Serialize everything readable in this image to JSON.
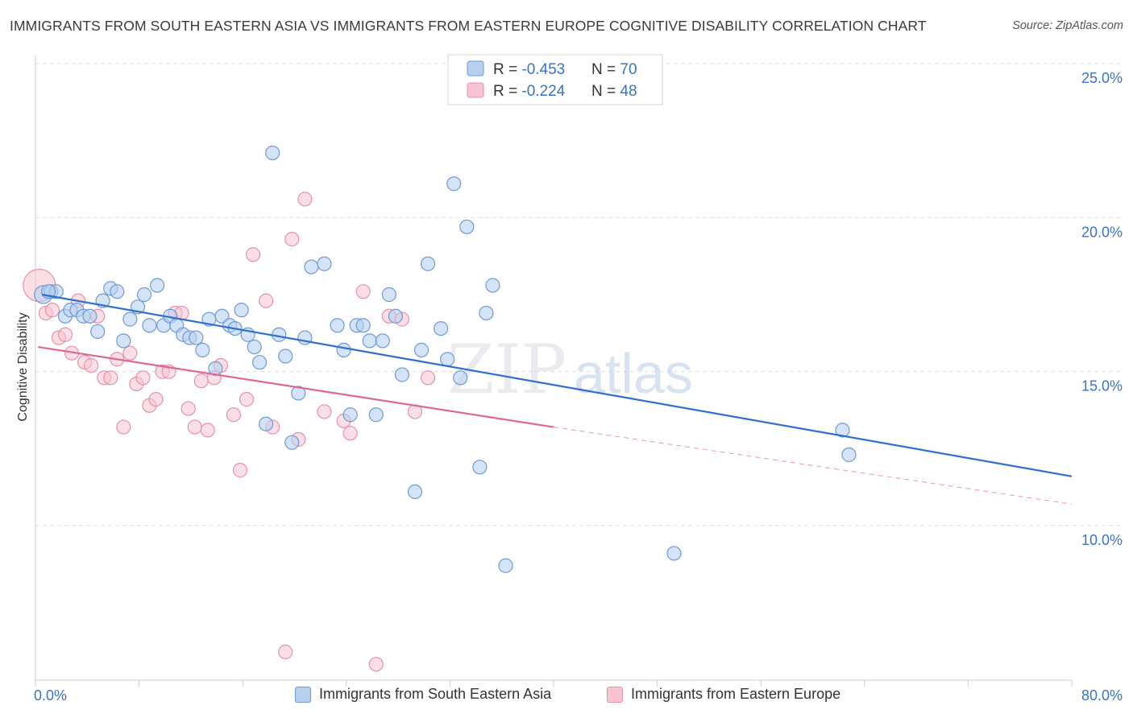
{
  "header": {
    "title": "IMMIGRANTS FROM SOUTH EASTERN ASIA VS IMMIGRANTS FROM EASTERN EUROPE COGNITIVE DISABILITY CORRELATION CHART",
    "source": "Source: ZipAtlas.com"
  },
  "watermark": {
    "zip": "ZIP",
    "atlas": "atlas"
  },
  "colors": {
    "blue_fill": "#b8d0f0",
    "blue_stroke": "#6f9ad6",
    "blue_line": "#2f6fcf",
    "pink_fill": "#f8c4d2",
    "pink_stroke": "#e890aa",
    "pink_line": "#e06890",
    "tick_label": "#3a73c6",
    "grid": "#dddddd"
  },
  "stats_legend": [
    {
      "r_label": "R = ",
      "r_value": "-0.453",
      "n_label": "N = ",
      "n_value": "70"
    },
    {
      "r_label": "R = ",
      "r_value": "-0.224",
      "n_label": "N = ",
      "n_value": "48"
    }
  ],
  "chart_data": {
    "type": "scatter",
    "ylabel": "Cognitive Disability",
    "xlim": [
      0,
      80
    ],
    "ylim": [
      5,
      26
    ],
    "x_tick_labels": [
      {
        "value": 0,
        "label": "0.0%"
      },
      {
        "value": 80,
        "label": "80.0%"
      }
    ],
    "y_tick_labels": [
      {
        "value": 10,
        "label": "10.0%"
      },
      {
        "value": 15,
        "label": "15.0%"
      },
      {
        "value": 20,
        "label": "20.0%"
      },
      {
        "value": 25,
        "label": "25.0%"
      }
    ],
    "grid": true,
    "legend_position": "bottom",
    "series": [
      {
        "name": "Immigrants from South Eastern Asia",
        "color": "#6f9ad6",
        "trend": {
          "x": [
            0.5,
            80
          ],
          "y": [
            17.5,
            11.6
          ]
        },
        "points": [
          [
            0.6,
            17.5
          ],
          [
            1.2,
            17.6
          ],
          [
            1.6,
            17.6
          ],
          [
            2.3,
            16.8
          ],
          [
            2.7,
            17.0
          ],
          [
            3.2,
            17.0
          ],
          [
            3.7,
            16.8
          ],
          [
            4.2,
            16.8
          ],
          [
            4.8,
            16.3
          ],
          [
            5.2,
            17.3
          ],
          [
            5.8,
            17.7
          ],
          [
            6.3,
            17.6
          ],
          [
            6.8,
            16.0
          ],
          [
            7.3,
            16.7
          ],
          [
            7.9,
            17.1
          ],
          [
            8.4,
            17.5
          ],
          [
            8.8,
            16.5
          ],
          [
            9.4,
            17.8
          ],
          [
            9.9,
            16.5
          ],
          [
            10.4,
            16.8
          ],
          [
            10.9,
            16.5
          ],
          [
            11.4,
            16.2
          ],
          [
            11.9,
            16.1
          ],
          [
            12.4,
            16.1
          ],
          [
            12.9,
            15.7
          ],
          [
            13.4,
            16.7
          ],
          [
            13.9,
            15.1
          ],
          [
            14.4,
            16.8
          ],
          [
            15.0,
            16.5
          ],
          [
            15.4,
            16.4
          ],
          [
            15.9,
            17.0
          ],
          [
            16.4,
            16.2
          ],
          [
            16.9,
            15.8
          ],
          [
            17.3,
            15.3
          ],
          [
            17.8,
            13.3
          ],
          [
            18.3,
            22.1
          ],
          [
            18.8,
            16.2
          ],
          [
            19.3,
            15.5
          ],
          [
            19.8,
            12.7
          ],
          [
            20.3,
            14.3
          ],
          [
            20.8,
            16.1
          ],
          [
            21.3,
            18.4
          ],
          [
            22.3,
            18.5
          ],
          [
            23.3,
            16.5
          ],
          [
            23.8,
            15.7
          ],
          [
            24.3,
            13.6
          ],
          [
            24.8,
            16.5
          ],
          [
            25.3,
            16.5
          ],
          [
            25.8,
            16.0
          ],
          [
            26.3,
            13.6
          ],
          [
            26.8,
            16.0
          ],
          [
            27.3,
            17.5
          ],
          [
            27.8,
            16.8
          ],
          [
            28.3,
            14.9
          ],
          [
            29.3,
            11.1
          ],
          [
            29.8,
            15.7
          ],
          [
            30.3,
            18.5
          ],
          [
            31.3,
            16.4
          ],
          [
            31.8,
            15.4
          ],
          [
            32.3,
            21.1
          ],
          [
            32.8,
            14.8
          ],
          [
            33.3,
            19.7
          ],
          [
            34.3,
            11.9
          ],
          [
            34.8,
            16.9
          ],
          [
            35.3,
            17.8
          ],
          [
            36.3,
            8.7
          ],
          [
            49.3,
            9.1
          ],
          [
            62.3,
            13.1
          ],
          [
            62.8,
            12.3
          ],
          [
            1.0,
            17.6
          ]
        ]
      },
      {
        "name": "Immigrants from Eastern Europe",
        "color": "#e890aa",
        "trend": {
          "x": [
            0.2,
            40
          ],
          "y": [
            15.8,
            13.2
          ]
        },
        "trend_extended": {
          "x": [
            40,
            80
          ],
          "y": [
            13.2,
            10.7
          ]
        },
        "points": [
          [
            0.3,
            17.8
          ],
          [
            0.8,
            16.9
          ],
          [
            1.3,
            17.0
          ],
          [
            1.8,
            16.1
          ],
          [
            2.3,
            16.2
          ],
          [
            2.8,
            15.6
          ],
          [
            3.3,
            17.3
          ],
          [
            3.8,
            15.3
          ],
          [
            4.3,
            15.2
          ],
          [
            4.8,
            16.8
          ],
          [
            5.3,
            14.8
          ],
          [
            5.8,
            14.8
          ],
          [
            6.3,
            15.4
          ],
          [
            6.8,
            13.2
          ],
          [
            7.3,
            15.6
          ],
          [
            7.8,
            14.6
          ],
          [
            8.3,
            14.8
          ],
          [
            8.8,
            13.9
          ],
          [
            9.3,
            14.1
          ],
          [
            9.8,
            15.0
          ],
          [
            10.3,
            15.0
          ],
          [
            10.8,
            16.9
          ],
          [
            11.3,
            16.9
          ],
          [
            11.8,
            13.8
          ],
          [
            12.3,
            13.2
          ],
          [
            12.8,
            14.7
          ],
          [
            13.3,
            13.1
          ],
          [
            13.8,
            14.8
          ],
          [
            14.3,
            15.2
          ],
          [
            15.3,
            13.6
          ],
          [
            15.8,
            11.8
          ],
          [
            16.3,
            14.1
          ],
          [
            16.8,
            18.8
          ],
          [
            17.8,
            17.3
          ],
          [
            18.3,
            13.2
          ],
          [
            19.3,
            5.9
          ],
          [
            19.8,
            19.3
          ],
          [
            20.3,
            12.8
          ],
          [
            20.8,
            20.6
          ],
          [
            22.3,
            13.7
          ],
          [
            23.8,
            13.4
          ],
          [
            24.3,
            13.0
          ],
          [
            25.3,
            17.6
          ],
          [
            26.3,
            5.5
          ],
          [
            27.3,
            16.8
          ],
          [
            28.3,
            16.7
          ],
          [
            29.3,
            13.7
          ],
          [
            30.3,
            14.8
          ]
        ]
      }
    ]
  },
  "bottom_legend": {
    "items": [
      {
        "label": "Immigrants from South Eastern Asia"
      },
      {
        "label": "Immigrants from Eastern Europe"
      }
    ]
  }
}
